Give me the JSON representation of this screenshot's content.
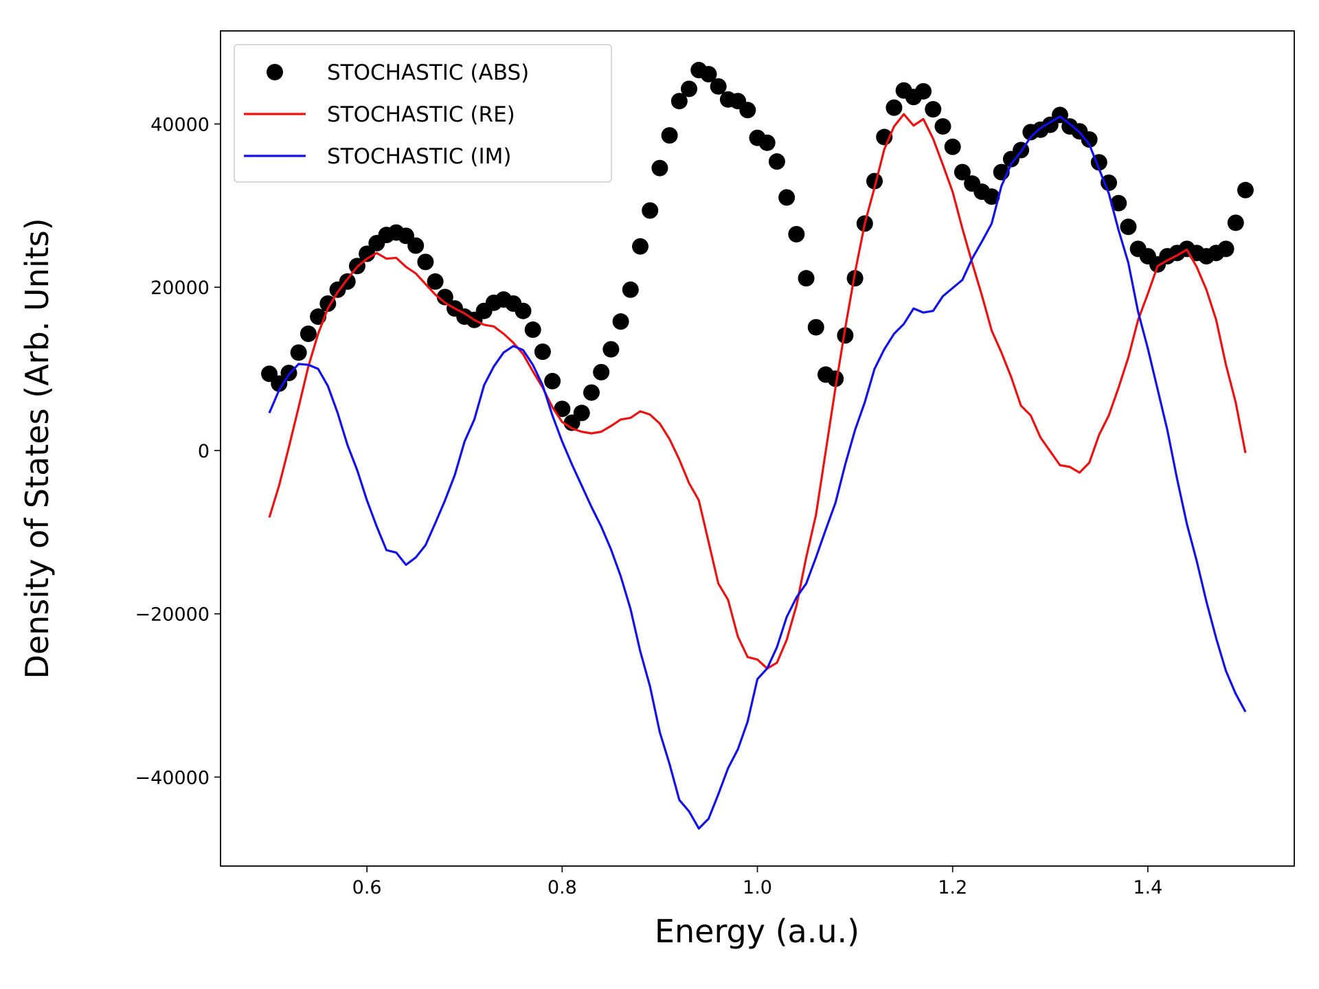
{
  "chart_data": {
    "type": "line",
    "x_label": "Energy (a.u.)",
    "y_label": "Density of States (Arb. Units)",
    "x": [
      0.5,
      0.51,
      0.52,
      0.53,
      0.54,
      0.55,
      0.56,
      0.57,
      0.58,
      0.59,
      0.6,
      0.61,
      0.62,
      0.63,
      0.64,
      0.65,
      0.66,
      0.67,
      0.68,
      0.69,
      0.7,
      0.71,
      0.72,
      0.73,
      0.74,
      0.75,
      0.76,
      0.77,
      0.78,
      0.79,
      0.8,
      0.81,
      0.82,
      0.83,
      0.84,
      0.85,
      0.86,
      0.87,
      0.88,
      0.89,
      0.9,
      0.91,
      0.92,
      0.93,
      0.94,
      0.95,
      0.96,
      0.97,
      0.98,
      0.99,
      1.0,
      1.01,
      1.02,
      1.03,
      1.04,
      1.05,
      1.06,
      1.07,
      1.08,
      1.09,
      1.1,
      1.11,
      1.12,
      1.13,
      1.14,
      1.15,
      1.16,
      1.17,
      1.18,
      1.19,
      1.2,
      1.21,
      1.22,
      1.23,
      1.24,
      1.25,
      1.26,
      1.27,
      1.28,
      1.29,
      1.3,
      1.31,
      1.32,
      1.33,
      1.34,
      1.35,
      1.36,
      1.37,
      1.38,
      1.39,
      1.4,
      1.41,
      1.42,
      1.43,
      1.44,
      1.45,
      1.46,
      1.47,
      1.48,
      1.49,
      1.5
    ],
    "series": [
      {
        "name": "STOCHASTIC (ABS)",
        "color": "#000000",
        "style": "marker",
        "values": [
          9400,
          8200,
          9500,
          12000,
          14300,
          16400,
          18000,
          19700,
          20700,
          22600,
          24100,
          25400,
          26400,
          26700,
          26300,
          25100,
          23100,
          20700,
          18800,
          17400,
          16400,
          16000,
          17100,
          18100,
          18500,
          18000,
          17100,
          14800,
          12100,
          8500,
          5100,
          3400,
          4600,
          7100,
          9600,
          12400,
          15800,
          19700,
          25000,
          29400,
          34600,
          38600,
          42800,
          44300,
          46600,
          46100,
          44600,
          43000,
          42800,
          41700,
          38300,
          37700,
          35400,
          31000,
          26500,
          21100,
          15100,
          9300,
          8800,
          14100,
          21100,
          27800,
          33000,
          38400,
          42000,
          44100,
          43300,
          44000,
          41800,
          39700,
          37200,
          34100,
          32700,
          31700,
          31100,
          34100,
          35700,
          36800,
          39000,
          39300,
          39900,
          41100,
          39700,
          39100,
          38100,
          35300,
          32800,
          30300,
          27400,
          24700,
          23800,
          22800,
          23800,
          24200,
          24700,
          24200,
          23800,
          24200,
          24700,
          27900,
          31900
        ]
      },
      {
        "name": "STOCHASTIC (RE)",
        "color": "#ee1111",
        "style": "line",
        "values": [
          -8200,
          -4300,
          400,
          5300,
          10300,
          14300,
          17400,
          19400,
          21000,
          22500,
          23500,
          24200,
          23500,
          23600,
          22500,
          21700,
          20400,
          19100,
          18100,
          17400,
          16800,
          16000,
          15400,
          15200,
          14300,
          13200,
          11800,
          9700,
          7700,
          5300,
          3500,
          2700,
          2300,
          2100,
          2300,
          3000,
          3800,
          4000,
          4800,
          4400,
          3300,
          1400,
          -1100,
          -4000,
          -6100,
          -11200,
          -16300,
          -18300,
          -22800,
          -25300,
          -25600,
          -26700,
          -26000,
          -23200,
          -19000,
          -13100,
          -7900,
          -100,
          7700,
          15000,
          21800,
          27800,
          32200,
          36900,
          39700,
          41200,
          39800,
          40600,
          38200,
          35000,
          31700,
          27200,
          23000,
          19000,
          14700,
          12000,
          9000,
          5500,
          4300,
          1600,
          -100,
          -1800,
          -2000,
          -2700,
          -1500,
          1900,
          4300,
          7700,
          11400,
          16000,
          19200,
          22600,
          23300,
          23900,
          24600,
          22500,
          19700,
          16000,
          10500,
          5900,
          -300
        ]
      },
      {
        "name": "STOCHASTIC (IM)",
        "color": "#1111ee",
        "style": "line",
        "values": [
          4600,
          7400,
          9300,
          10600,
          10500,
          10000,
          7900,
          4600,
          700,
          -2400,
          -6100,
          -9300,
          -12200,
          -12500,
          -14000,
          -13100,
          -11600,
          -8900,
          -6100,
          -3000,
          1100,
          3800,
          8000,
          10300,
          12000,
          12800,
          12300,
          10500,
          8000,
          4300,
          1100,
          -1700,
          -4300,
          -6900,
          -9300,
          -12100,
          -15400,
          -19400,
          -24600,
          -28900,
          -34500,
          -38400,
          -42800,
          -44200,
          -46300,
          -45100,
          -42100,
          -38900,
          -36600,
          -33200,
          -28000,
          -26700,
          -24100,
          -20400,
          -18000,
          -16300,
          -13100,
          -9700,
          -6400,
          -1700,
          2500,
          5900,
          10000,
          12400,
          14300,
          15500,
          17400,
          16900,
          17100,
          18900,
          19900,
          20900,
          23500,
          25600,
          27800,
          32400,
          35100,
          36600,
          38400,
          39500,
          40200,
          40900,
          40000,
          39000,
          37500,
          34500,
          31500,
          27000,
          23000,
          17000,
          12500,
          7500,
          2500,
          -3500,
          -9000,
          -13500,
          -18500,
          -23000,
          -27000,
          -29800,
          -32000
        ]
      }
    ],
    "xlim": [
      0.45,
      1.55
    ],
    "ylim": [
      -50900,
      51400
    ],
    "xticks": [
      0.6,
      0.8,
      {
        "value": 1.0,
        "label": "1.0"
      },
      1.2,
      1.4
    ],
    "yticks": [
      {
        "value": -40000,
        "label": "−40000"
      },
      {
        "value": -20000,
        "label": "−20000"
      },
      0,
      20000,
      40000
    ],
    "legend": "upper left",
    "grid": false
  }
}
